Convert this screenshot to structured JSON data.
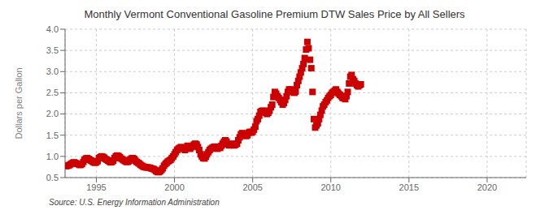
{
  "chart_data": {
    "type": "scatter",
    "title": "Monthly Vermont Conventional Gasoline Premium DTW Sales Price by All Sellers",
    "ylabel": "Dollars per Gallon",
    "annotations": [
      "Source: U.S. Energy Information Administration"
    ],
    "color": "#cc0000",
    "marker": "square",
    "grid": true,
    "xlim": [
      1993.0,
      2022.5
    ],
    "ylim": [
      0.5,
      4.0
    ],
    "xticks": [
      1995,
      2000,
      2005,
      2010,
      2015,
      2020
    ],
    "yticks": [
      0.5,
      {
        "value": 1.0,
        "label": "1.0"
      },
      1.5,
      {
        "value": 2.0,
        "label": "2.0"
      },
      2.5,
      {
        "value": 3.0,
        "label": "3.0"
      },
      3.5,
      {
        "value": 4.0,
        "label": "4.0"
      }
    ],
    "x": [
      1993.08,
      1993.17,
      1993.25,
      1993.33,
      1993.42,
      1993.5,
      1993.58,
      1993.67,
      1993.75,
      1993.83,
      1993.92,
      1994.0,
      1994.08,
      1994.17,
      1994.25,
      1994.33,
      1994.42,
      1994.5,
      1994.58,
      1994.67,
      1994.75,
      1994.83,
      1994.92,
      1995.0,
      1995.08,
      1995.17,
      1995.25,
      1995.33,
      1995.42,
      1995.5,
      1995.58,
      1995.67,
      1995.75,
      1995.83,
      1995.92,
      1996.0,
      1996.08,
      1996.17,
      1996.25,
      1996.33,
      1996.42,
      1996.5,
      1996.58,
      1996.67,
      1996.75,
      1996.83,
      1996.92,
      1997.0,
      1997.08,
      1997.17,
      1997.25,
      1997.33,
      1997.42,
      1997.5,
      1997.58,
      1997.67,
      1997.75,
      1997.83,
      1997.92,
      1998.0,
      1998.08,
      1998.17,
      1998.25,
      1998.33,
      1998.42,
      1998.5,
      1998.58,
      1998.67,
      1998.75,
      1998.83,
      1998.92,
      1999.0,
      1999.08,
      1999.17,
      1999.25,
      1999.33,
      1999.42,
      1999.5,
      1999.58,
      1999.67,
      1999.75,
      1999.83,
      1999.92,
      2000.0,
      2000.08,
      2000.17,
      2000.25,
      2000.33,
      2000.42,
      2000.5,
      2000.58,
      2000.67,
      2000.75,
      2000.83,
      2000.92,
      2001.0,
      2001.08,
      2001.17,
      2001.25,
      2001.33,
      2001.42,
      2001.5,
      2001.58,
      2001.67,
      2001.75,
      2001.83,
      2001.92,
      2002.0,
      2002.08,
      2002.17,
      2002.25,
      2002.33,
      2002.42,
      2002.5,
      2002.58,
      2002.67,
      2002.75,
      2002.83,
      2002.92,
      2003.0,
      2003.08,
      2003.17,
      2003.25,
      2003.33,
      2003.42,
      2003.5,
      2003.58,
      2003.67,
      2003.75,
      2003.83,
      2003.92,
      2004.0,
      2004.08,
      2004.17,
      2004.25,
      2004.33,
      2004.42,
      2004.5,
      2004.58,
      2004.67,
      2004.75,
      2004.83,
      2004.92,
      2005.0,
      2005.08,
      2005.17,
      2005.25,
      2005.33,
      2005.42,
      2005.5,
      2005.58,
      2005.67,
      2005.75,
      2005.83,
      2005.92,
      2006.0,
      2006.08,
      2006.17,
      2006.25,
      2006.33,
      2006.42,
      2006.5,
      2006.58,
      2006.67,
      2006.75,
      2006.83,
      2006.92,
      2007.0,
      2007.08,
      2007.17,
      2007.25,
      2007.33,
      2007.42,
      2007.5,
      2007.58,
      2007.67,
      2007.75,
      2007.83,
      2007.92,
      2008.0,
      2008.08,
      2008.17,
      2008.25,
      2008.33,
      2008.42,
      2008.5,
      2008.58,
      2008.67,
      2008.75,
      2008.83,
      2008.92,
      2009.0,
      2009.08,
      2009.17,
      2009.25,
      2009.33,
      2009.42,
      2009.5,
      2009.58,
      2009.67,
      2009.75,
      2009.83,
      2009.92,
      2010.0,
      2010.08,
      2010.17,
      2010.25,
      2010.33,
      2010.42,
      2010.5,
      2010.58,
      2010.67,
      2010.75,
      2010.83,
      2010.92,
      2011.0,
      2011.08,
      2011.17,
      2011.25,
      2011.33,
      2011.42,
      2011.5,
      2011.58,
      2011.67,
      2011.75,
      2011.83,
      2011.92
    ],
    "values": [
      0.77,
      0.78,
      0.79,
      0.81,
      0.83,
      0.85,
      0.86,
      0.84,
      0.83,
      0.82,
      0.8,
      0.8,
      0.82,
      0.87,
      0.92,
      0.95,
      0.96,
      0.94,
      0.92,
      0.9,
      0.88,
      0.86,
      0.85,
      0.86,
      0.89,
      0.96,
      0.98,
      1.0,
      0.99,
      0.97,
      0.94,
      0.92,
      0.9,
      0.88,
      0.86,
      0.87,
      0.9,
      0.96,
      1.0,
      1.02,
      1.01,
      0.98,
      0.95,
      0.93,
      0.91,
      0.89,
      0.87,
      0.87,
      0.89,
      0.93,
      0.95,
      0.96,
      0.94,
      0.9,
      0.87,
      0.85,
      0.83,
      0.8,
      0.78,
      0.76,
      0.75,
      0.74,
      0.74,
      0.74,
      0.73,
      0.72,
      0.71,
      0.7,
      0.68,
      0.65,
      0.63,
      0.63,
      0.65,
      0.68,
      0.72,
      0.78,
      0.82,
      0.85,
      0.88,
      0.9,
      0.92,
      0.96,
      1.0,
      1.05,
      1.1,
      1.15,
      1.18,
      1.2,
      1.22,
      1.2,
      1.18,
      1.15,
      1.2,
      1.25,
      1.22,
      1.18,
      1.22,
      1.25,
      1.28,
      1.3,
      1.28,
      1.22,
      1.15,
      1.05,
      1.0,
      0.96,
      0.95,
      0.99,
      1.05,
      1.1,
      1.15,
      1.18,
      1.2,
      1.22,
      1.23,
      1.2,
      1.18,
      1.22,
      1.2,
      1.25,
      1.3,
      1.35,
      1.38,
      1.35,
      1.28,
      1.26,
      1.28,
      1.3,
      1.28,
      1.26,
      1.28,
      1.3,
      1.38,
      1.45,
      1.52,
      1.55,
      1.52,
      1.5,
      1.48,
      1.5,
      1.56,
      1.58,
      1.56,
      1.58,
      1.63,
      1.7,
      1.83,
      1.88,
      1.96,
      2.05,
      2.07,
      2.08,
      2.06,
      2.03,
      2.0,
      2.03,
      2.08,
      2.16,
      2.22,
      2.4,
      2.52,
      2.48,
      2.42,
      2.38,
      2.33,
      2.28,
      2.22,
      2.26,
      2.33,
      2.42,
      2.52,
      2.58,
      2.58,
      2.55,
      2.52,
      2.5,
      2.53,
      2.68,
      2.78,
      2.88,
      2.98,
      3.08,
      3.18,
      3.32,
      3.52,
      3.7,
      3.55,
      3.28,
      3.08,
      2.52,
      1.88,
      1.68,
      1.73,
      1.78,
      1.88,
      1.98,
      2.08,
      2.18,
      2.22,
      2.28,
      2.32,
      2.38,
      2.42,
      2.45,
      2.5,
      2.52,
      2.55,
      2.58,
      2.52,
      2.48,
      2.45,
      2.42,
      2.38,
      2.38,
      2.35,
      2.42,
      2.52,
      2.72,
      2.88,
      2.92,
      2.82,
      2.78,
      2.72,
      2.68,
      2.65,
      2.68,
      2.7
    ]
  }
}
